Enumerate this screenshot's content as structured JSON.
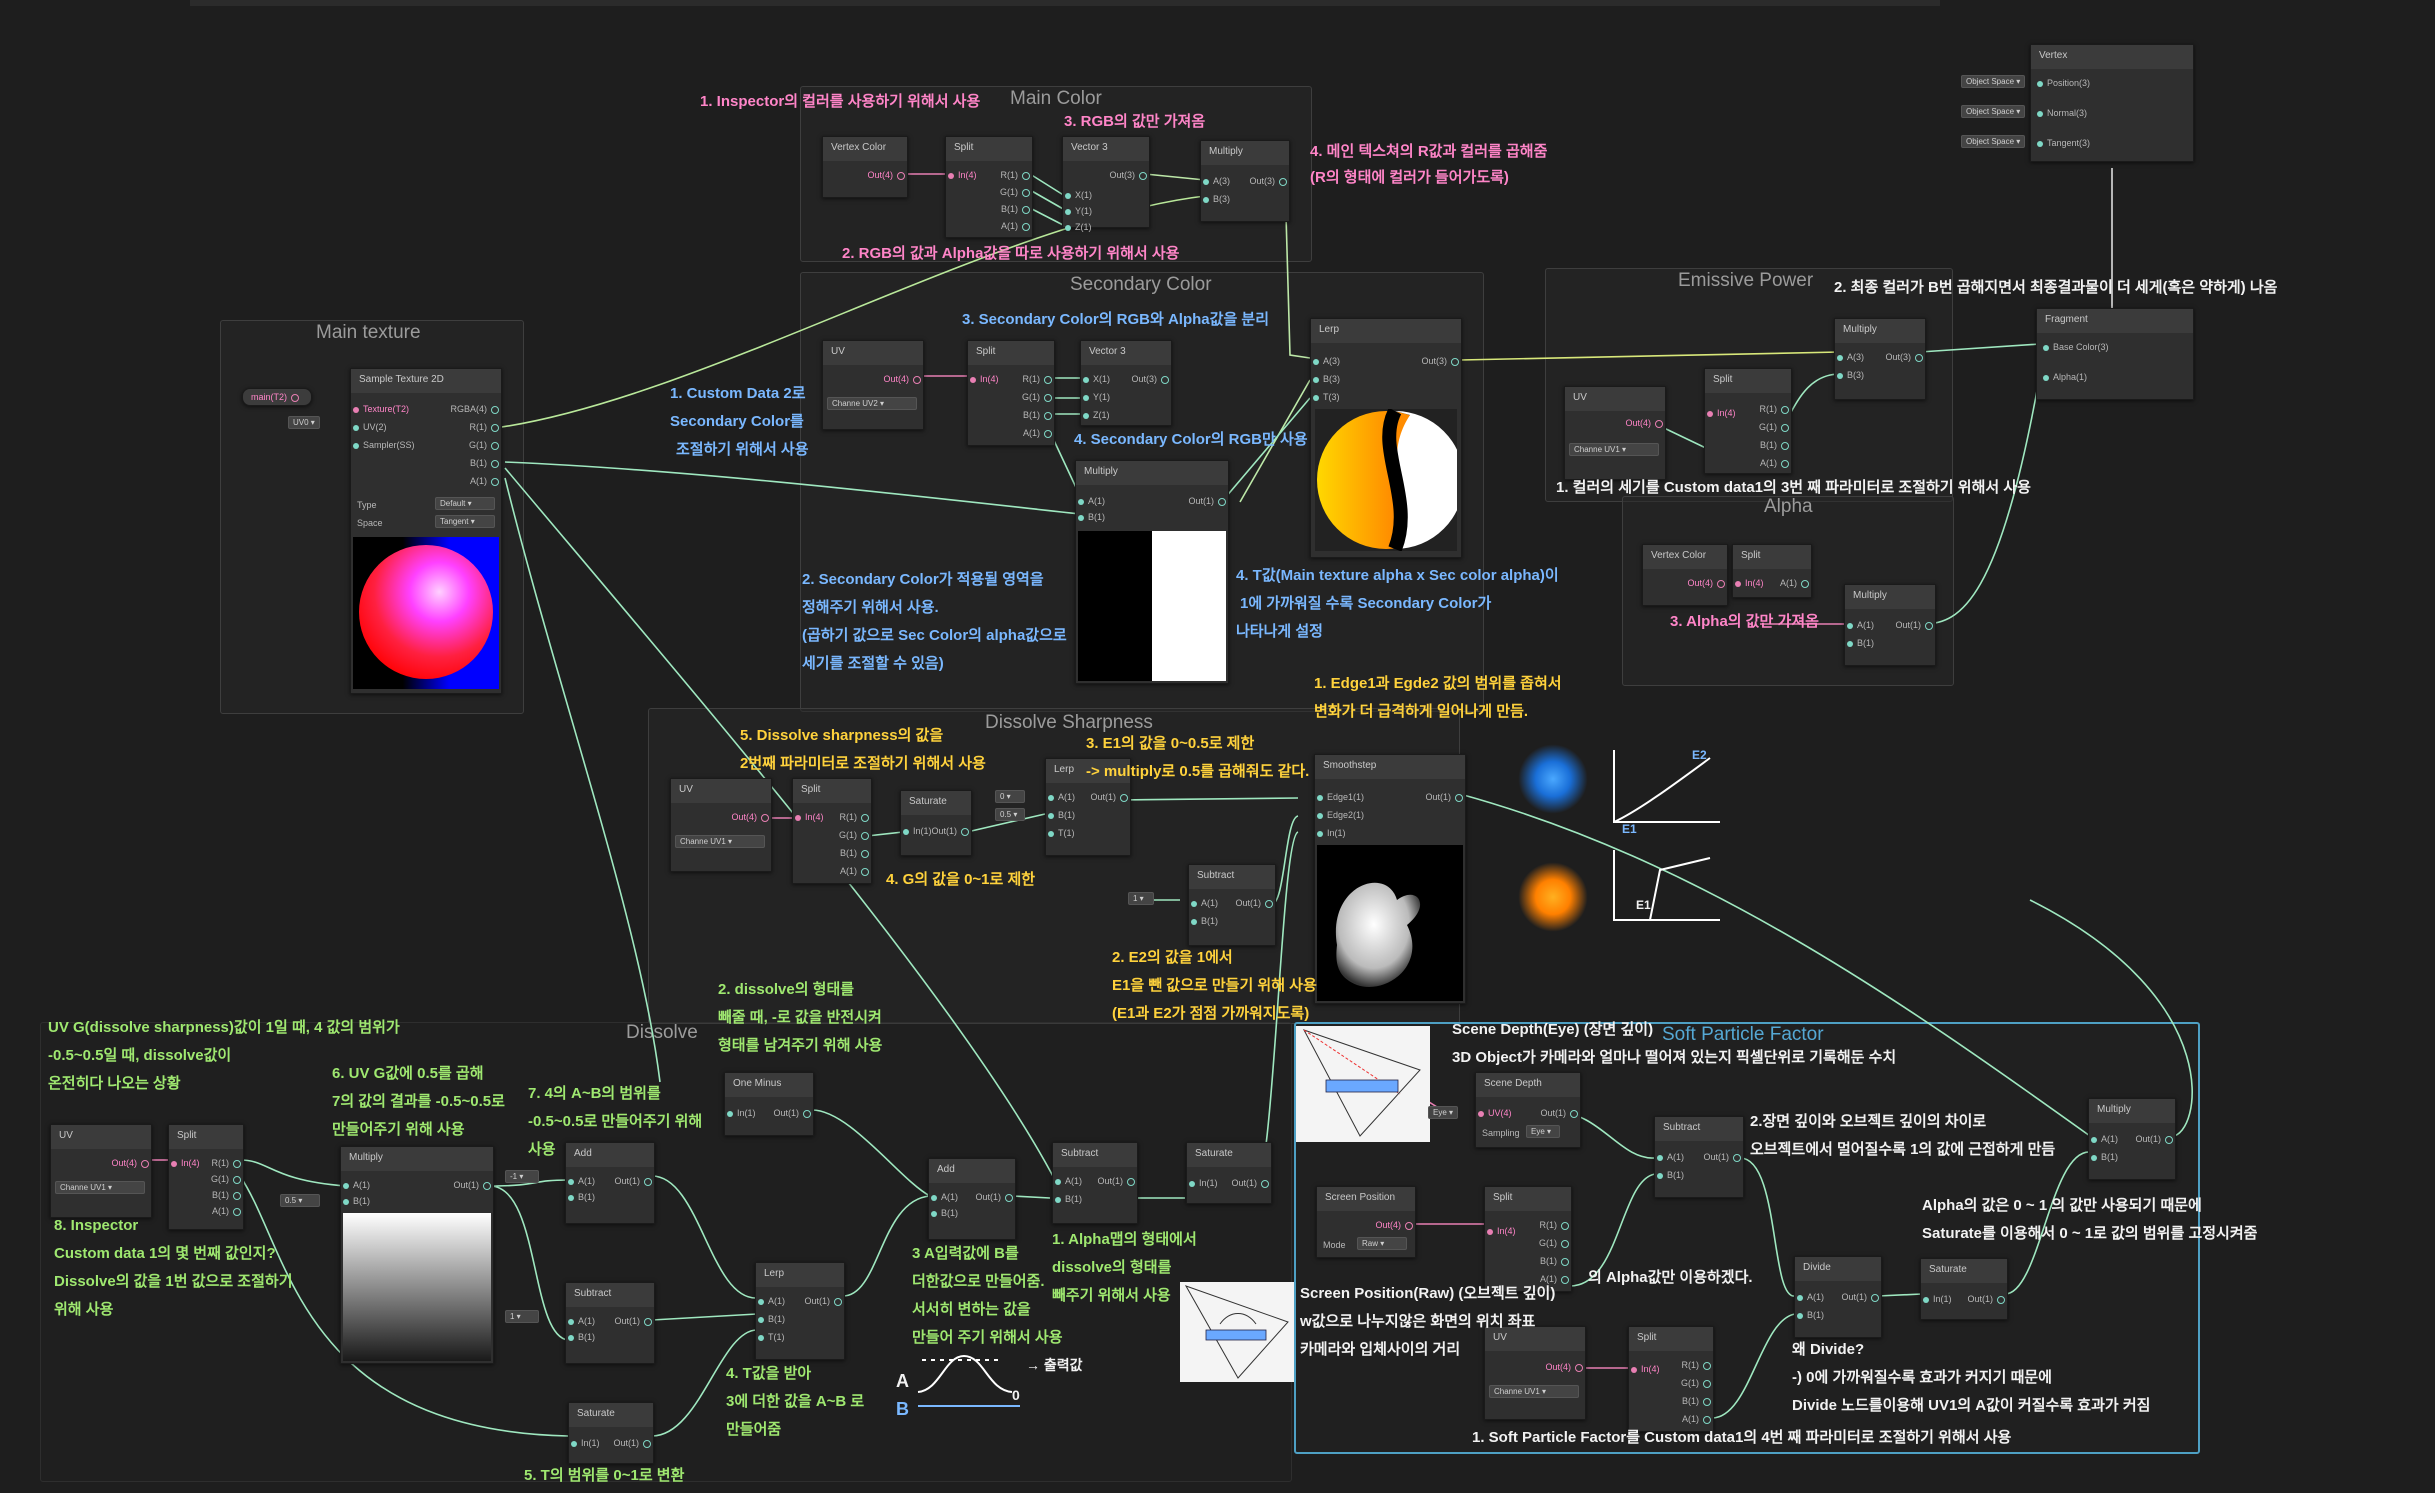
{
  "groups": {
    "main_color": "Main Color",
    "secondary_color": "Secondary Color",
    "main_texture": "Main texture",
    "emissive_power": "Emissive Power",
    "alpha": "Alpha",
    "dissolve_sharpness": "Dissolve Sharpness",
    "dissolve": "Dissolve",
    "soft_particle_factor": "Soft Particle Factor"
  },
  "nodes": {
    "vertex_color": "Vertex Color",
    "split": "Split",
    "vector3": "Vector 3",
    "multiply": "Multiply",
    "uv": "UV",
    "lerp": "Lerp",
    "sample_texture": "Sample Texture 2D",
    "vertex": "Vertex",
    "fragment": "Fragment",
    "saturate": "Saturate",
    "smoothstep": "Smoothstep",
    "subtract": "Subtract",
    "one_minus": "One Minus",
    "add": "Add",
    "scene_depth": "Scene Depth",
    "screen_position": "Screen Position",
    "divide": "Divide"
  },
  "ports": {
    "out4": "Out(4)",
    "out3": "Out(3)",
    "out2": "Out(2)",
    "out1": "Out(1)",
    "in4": "In(4)",
    "in1": "In(1)",
    "r1": "R(1)",
    "g1": "G(1)",
    "b1": "B(1)",
    "a1": "A(1)",
    "x1": "X(1)",
    "y1": "Y(1)",
    "z1": "Z(1)",
    "a3": "A(3)",
    "b3": "B(3)",
    "t3": "T(3)",
    "t1": "T(1)",
    "uv4": "UV(4)",
    "rgba4": "RGBA(4)",
    "texture": "Texture(T2)",
    "uv2": "UV(2)",
    "sampler": "Sampler(SS)",
    "edge1": "Edge1(1)",
    "edge2": "Edge2(1)",
    "object_space": "Object Space",
    "position3": "Position(3)",
    "normal3": "Normal(3)",
    "tangent3": "Tangent(3)",
    "base_color": "Base Color(3)",
    "alpha1": "Alpha(1)",
    "type": "Type",
    "space": "Space",
    "mode": "Mode",
    "sampling": "Sampling"
  },
  "values": {
    "channel_uv1": "Channe UV1",
    "channel_uv2": "Channe UV2",
    "uv0": "UV0",
    "main_t2": "main(T2)",
    "default": "Default",
    "tangent": "Tangent",
    "raw": "Raw",
    "eye": "Eye",
    "v0": "0",
    "v05": "0.5",
    "v1": "1",
    "vm1": "-1",
    "x": "X"
  },
  "annotations": {
    "mc1": "1. Inspector의 컬러를 사용하기 위해서 사용",
    "mc2": "2. RGB의 값과 Alpha값을 따로 사용하기 위해서 사용",
    "mc3": "3. RGB의 값만 가져옴",
    "mc4a": "4. 메인 텍스쳐의 R값과 컬러를 곱해줌",
    "mc4b": "(R의 형태에 컬러가 들어가도록)",
    "sc3": "3. Secondary Color의 RGB와 Alpha값을 분리",
    "sc4": "4. Secondary Color의 RGB만 사용",
    "sc1a": "1. Custom Data 2로",
    "sc1b": "Secondary Color를",
    "sc1c": "조절하기 위해서 사용",
    "sc2a": "2. Secondary Color가 적용될 영역을",
    "sc2b": "정해주기 위해서 사용.",
    "sc2c": "(곱하기 값으로 Sec Color의 alpha값으로",
    "sc2d": "세기를 조절할 수 있음)",
    "t1": "4. T값(Main texture alpha x Sec color alpha)이",
    "t2": "1에 가까워질 수록 Secondary Color가",
    "t3": "나타나게 설정",
    "em2": "2. 최종 컬러가 B번 곱해지면서 최종결과물이 더 세게(혹은 약하게) 나옴",
    "em1": "1. 컬러의 세기를 Custom data1의 3번 째 파라미터로 조절하기 위해서 사용",
    "al3": "3. Alpha의 값만 가져옴",
    "ds1a": "1. Edge1과 Egde2 값의 범위를 좁혀서",
    "ds1b": "변화가 더 급격하게 일어나게 만듬.",
    "ds5a": "5. Dissolve sharpness의 값을",
    "ds5b": "2번째 파라미터로 조절하기 위해서 사용",
    "ds3a": "3. E1의 값을 0~0.5로 제한",
    "ds3b": "-> multiply로 0.5를 곱해줘도 같다.",
    "ds4": "4. G의 값을 0~1로 제한",
    "ds2a": "2. E2의 값을 1에서",
    "ds2b": "E1을 뺀 값으로 만들기 위해 사용",
    "ds2c": "(E1과 E2가 점점 가까워지도록)",
    "dv2a": "2. dissolve의 형태를",
    "dv2b": "빼줄 때, -로 값을 반전시켜",
    "dv2c": "형태를 남겨주기 위해 사용",
    "uvg1": "UV G(dissolve sharpness)값이 1일 때, 4 값의 범위가",
    "uvg2": "-0.5~0.5일 때, dissolve값이",
    "uvg3": "온전히다 나오는 상황",
    "dv6a": "6. UV G값에 0.5를 곱해",
    "dv6b": "7의 값의 결과를 -0.5~0.5로",
    "dv6c": "만들어주기 위해 사용",
    "dv7a": "7. 4의 A~B의 범위를",
    "dv7b": "-0.5~0.5로 만들어주기 위해",
    "dv7c": "사용",
    "dv8a": "8. Inspector",
    "dv8b": "Custom data 1의 몇 번째 값인지?",
    "dv8c": "Dissolve의 값을 1번 값으로 조절하기",
    "dv8d": "위해 사용",
    "dv3a": "3 A입력값에 B를",
    "dv3b": "더한값으로 만들어줌.",
    "dv3c": "서서히 변하는 값을",
    "dv3d": "만들어 주기 위해서 사용",
    "dv1a": "1. Alpha맵의 형태에서",
    "dv1b": "dissolve의 형태를",
    "dv1c": "빼주기 위해서 사용",
    "dv4a": "4. T값을 받아",
    "dv4b": "3에 더한 값을 A~B 로",
    "dv4c": "만들어줌",
    "dv5": "5. T의 범위를 0~1로 변환",
    "sp1a": "Scene Depth(Eye) (장면 깊이)",
    "sp1b": "3D Object가 카메라와 얼마나 떨어져 있는지 픽셀단위로 기록해둔 수치",
    "sp2a": "2.장면 깊이와 오브젝트 깊이의 차이로",
    "sp2b": "오브젝트에서 멀어질수록 1의 값에 근접하게 만듬",
    "sp3a": "Alpha의 값은 0 ~ 1 의 값만 사용되기 때문에",
    "sp3b": "Saturate를 이용해서 0 ~ 1로 값의 범위를 고정시켜줌",
    "sp4": "의 Alpha값만 이용하겠다.",
    "sp5a": "Screen Position(Raw) (오브젝트 깊이)",
    "sp5b": "w값으로 나누지않은 화면의 위치 좌표",
    "sp5c": "카메라와 입체사이의 거리",
    "sp6a": "왜 Divide?",
    "sp6b": "-) 0에 가까워질수록 효과가 커지기 때문에",
    "sp6c": "Divide 노드를이용해 UV1의 A값이 커질수록 효과가 커짐",
    "sp7": "1. Soft Particle Factor를 Custom data1의 4번 째 파라미터로 조절하기 위해서 사용",
    "hand_out": "→ 출력값",
    "hand_a": "A",
    "hand_b": "B",
    "hand_e1": "E1",
    "hand_e2": "E2",
    "hand_zero": "0"
  }
}
